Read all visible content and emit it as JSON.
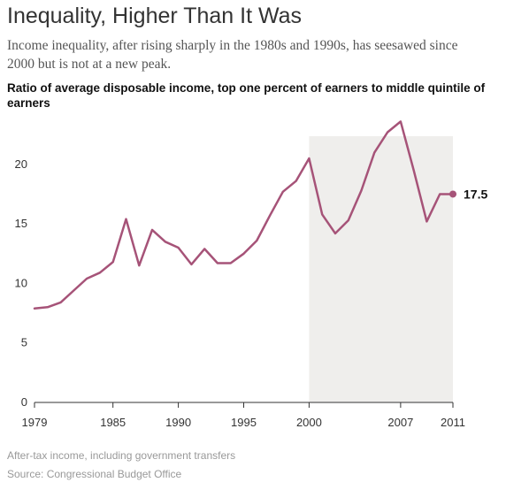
{
  "header": {
    "title": "Inequality, Higher Than It Was",
    "subtitle": "Income inequality, after rising sharply in the 1980s and 1990s, has seesawed since 2000 but is not at a new peak."
  },
  "chart_data": {
    "type": "line",
    "title": "Ratio of average disposable income, top one percent of earners to middle quintile of earners",
    "xlabel": "",
    "ylabel": "",
    "xlim": [
      1979,
      2011
    ],
    "ylim": [
      0,
      24
    ],
    "x_ticks": [
      "1979",
      "1985",
      "1990",
      "1995",
      "2000",
      "2007",
      "2011"
    ],
    "y_ticks": [
      "0",
      "5",
      "10",
      "15",
      "20"
    ],
    "grid": false,
    "highlight": {
      "from": 2000,
      "to": 2011,
      "color": "#efeeec"
    },
    "line_color": "#a65378",
    "end_label": "17.5",
    "x": [
      1979,
      1980,
      1981,
      1982,
      1983,
      1984,
      1985,
      1986,
      1987,
      1988,
      1989,
      1990,
      1991,
      1992,
      1993,
      1994,
      1995,
      1996,
      1997,
      1998,
      1999,
      2000,
      2001,
      2002,
      2003,
      2004,
      2005,
      2006,
      2007,
      2008,
      2009,
      2010,
      2011
    ],
    "values": [
      7.9,
      8.0,
      8.4,
      9.4,
      10.4,
      10.9,
      11.8,
      15.4,
      11.5,
      14.5,
      13.5,
      13.0,
      11.6,
      12.9,
      11.7,
      11.7,
      12.5,
      13.6,
      15.7,
      17.7,
      18.6,
      20.5,
      15.8,
      14.2,
      15.3,
      17.8,
      21.0,
      22.7,
      23.6,
      19.5,
      15.2,
      17.5,
      17.5
    ]
  },
  "footer": {
    "note": "After-tax income, including government transfers",
    "source": "Source: Congressional Budget Office"
  }
}
